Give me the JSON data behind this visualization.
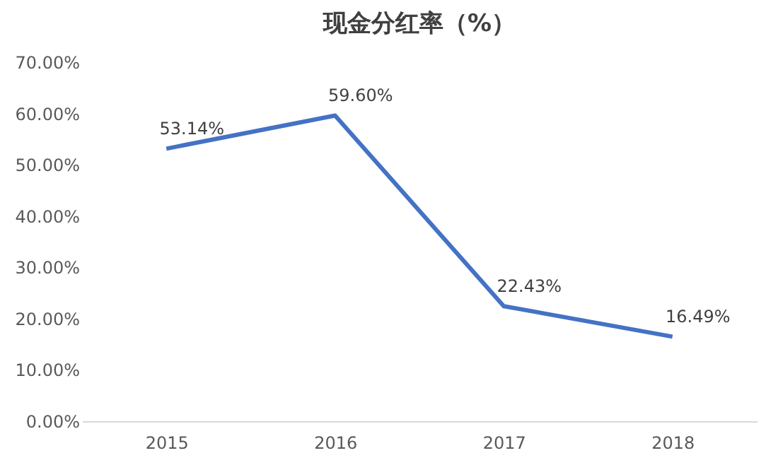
{
  "chart_data": {
    "type": "line",
    "title": "现金分红率（%）",
    "categories": [
      "2015",
      "2016",
      "2017",
      "2018"
    ],
    "series": [
      {
        "color": "#4472c4",
        "values": [
          53.14,
          59.6,
          22.43,
          16.49
        ],
        "value_labels": [
          "53.14%",
          "59.60%",
          "22.43%",
          "16.49%"
        ]
      }
    ],
    "ylim": [
      0,
      70
    ],
    "yticks": [
      {
        "value": 0,
        "label": "0.00%"
      },
      {
        "value": 10,
        "label": "10.00%"
      },
      {
        "value": 20,
        "label": "20.00%"
      },
      {
        "value": 30,
        "label": "30.00%"
      },
      {
        "value": 40,
        "label": "40.00%"
      },
      {
        "value": 50,
        "label": "50.00%"
      },
      {
        "value": 60,
        "label": "60.00%"
      },
      {
        "value": 70,
        "label": "70.00%"
      }
    ],
    "grid": false,
    "legend": false,
    "marker": "none",
    "line_style": "solid"
  }
}
